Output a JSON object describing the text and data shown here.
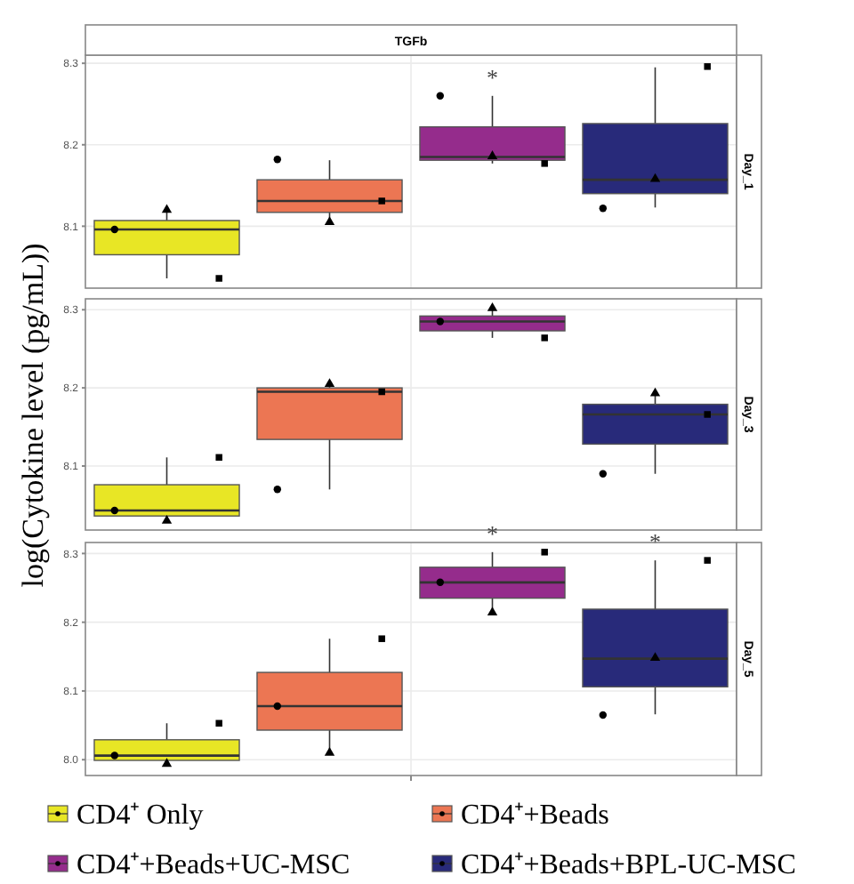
{
  "chart_data": [
    {
      "type": "box",
      "title": "TGFb",
      "y2label": "Day_1",
      "categories": [
        null,
        null,
        null,
        null
      ],
      "ylim": [
        8.024,
        8.31
      ],
      "yticks": [
        8.1,
        8.2,
        8.3
      ],
      "grid": "y",
      "tick_labels": "y",
      "series": [
        {
          "color": "#e8e625",
          "boxes": [
            {
              "low": 8.036,
              "q1": 8.065,
              "median": 8.096,
              "q3": 8.107,
              "high": 8.119
            },
            null,
            null,
            null
          ]
        },
        {
          "color": "#ec7653",
          "boxes": [
            null,
            {
              "low": 8.105,
              "q1": 8.117,
              "median": 8.131,
              "q3": 8.157,
              "high": 8.181
            },
            null,
            null
          ]
        },
        {
          "color": "#952c8c",
          "boxes": [
            null,
            null,
            {
              "low": 8.177,
              "q1": 8.181,
              "median": 8.185,
              "q3": 8.222,
              "high": 8.26
            },
            null
          ]
        },
        {
          "color": "#282a7a",
          "boxes": [
            null,
            null,
            null,
            {
              "low": 8.123,
              "q1": 8.14,
              "median": 8.157,
              "q3": 8.226,
              "high": 8.295
            }
          ]
        },
        {
          "type": "scatter",
          "marker": "circle",
          "color": "#000000",
          "values": [
            8.096,
            8.182,
            8.26,
            8.122
          ]
        },
        {
          "type": "scatter",
          "marker": "triangle",
          "color": "#000000",
          "values": [
            8.12,
            8.105,
            8.186,
            8.158
          ]
        },
        {
          "type": "scatter",
          "marker": "square",
          "color": "#000000",
          "values": [
            8.036,
            8.131,
            8.177,
            8.296
          ]
        }
      ],
      "annotations": [
        "*"
      ]
    },
    {
      "type": "box",
      "y2label": "Day_3",
      "ylabel": "log(Cytokine level (pg/mL))",
      "categories": [
        null,
        null,
        null,
        null
      ],
      "ylim": [
        8.018,
        8.314
      ],
      "yticks": [
        8.1,
        8.2,
        8.3
      ],
      "grid": "y",
      "tick_labels": "y",
      "series": [
        {
          "color": "#e8e625",
          "boxes": [
            {
              "low": 8.03,
              "q1": 8.036,
              "median": 8.043,
              "q3": 8.076,
              "high": 8.111
            },
            null,
            null,
            null
          ]
        },
        {
          "color": "#ec7653",
          "boxes": [
            null,
            {
              "low": 8.07,
              "q1": 8.134,
              "median": 8.195,
              "q3": 8.2,
              "high": 8.205
            },
            null,
            null
          ]
        },
        {
          "color": "#952c8c",
          "boxes": [
            null,
            null,
            {
              "low": 8.264,
              "q1": 8.273,
              "median": 8.285,
              "q3": 8.292,
              "high": 8.302
            },
            null
          ]
        },
        {
          "color": "#282a7a",
          "boxes": [
            null,
            null,
            null,
            {
              "low": 8.09,
              "q1": 8.128,
              "median": 8.166,
              "q3": 8.179,
              "high": 8.193
            }
          ]
        },
        {
          "type": "scatter",
          "marker": "circle",
          "color": "#000000",
          "values": [
            8.043,
            8.07,
            8.285,
            8.09
          ]
        },
        {
          "type": "scatter",
          "marker": "triangle",
          "color": "#000000",
          "values": [
            8.03,
            8.205,
            8.302,
            8.193
          ]
        },
        {
          "type": "scatter",
          "marker": "square",
          "color": "#000000",
          "values": [
            8.111,
            8.195,
            8.264,
            8.166
          ]
        }
      ]
    },
    {
      "type": "box",
      "y2label": "Day_5",
      "categories": [
        null,
        null,
        null,
        null
      ],
      "ylim": [
        7.977,
        8.316
      ],
      "yticks": [
        {
          "value": 8,
          "label": "8.0"
        },
        8.1,
        8.2,
        8.3
      ],
      "grid": "y",
      "tick_labels": "y",
      "legend": "bottom",
      "series": [
        {
          "name": "CD4⁺ Only",
          "color": "#e8e625",
          "boxes": [
            {
              "low": 7.994,
              "q1": 7.999,
              "median": 8.006,
              "q3": 8.029,
              "high": 8.053
            },
            null,
            null,
            null
          ]
        },
        {
          "name": "CD4⁺+Beads",
          "color": "#ec7653",
          "boxes": [
            null,
            {
              "low": 8.01,
              "q1": 8.043,
              "median": 8.078,
              "q3": 8.127,
              "high": 8.176
            },
            null,
            null
          ]
        },
        {
          "name": "CD4⁺+Beads+UC-MSC",
          "color": "#952c8c",
          "boxes": [
            null,
            null,
            {
              "low": 8.214,
              "q1": 8.235,
              "median": 8.258,
              "q3": 8.28,
              "high": 8.302
            },
            null
          ]
        },
        {
          "name": "CD4⁺+Beads+BPL-UC-MSC",
          "color": "#282a7a",
          "boxes": [
            null,
            null,
            null,
            {
              "low": 8.066,
              "q1": 8.106,
              "median": 8.147,
              "q3": 8.219,
              "high": 8.29
            }
          ]
        },
        {
          "type": "scatter",
          "marker": "circle",
          "color": "#000000",
          "values": [
            8.006,
            8.078,
            8.258,
            8.065
          ]
        },
        {
          "type": "scatter",
          "marker": "triangle",
          "color": "#000000",
          "values": [
            7.994,
            8.01,
            8.214,
            8.148
          ]
        },
        {
          "type": "scatter",
          "marker": "square",
          "color": "#000000",
          "values": [
            8.053,
            8.176,
            8.302,
            8.29
          ]
        }
      ],
      "annotations": [
        "*",
        "*"
      ]
    }
  ]
}
